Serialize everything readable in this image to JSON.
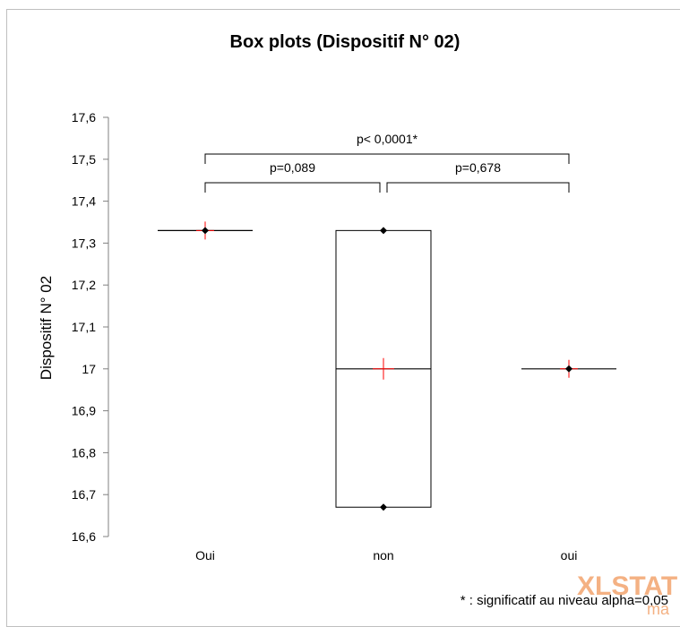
{
  "chart_data": {
    "type": "box",
    "title": "Box plots (Dispositif N° 02)",
    "ylabel": "Dispositif N° 02",
    "xlabel": "",
    "ylim": [
      16.6,
      17.6
    ],
    "yticks": [
      16.6,
      16.7,
      16.8,
      16.9,
      17,
      17.1,
      17.2,
      17.3,
      17.4,
      17.5,
      17.6
    ],
    "ytick_labels": [
      "16,6",
      "16,7",
      "16,8",
      "16,9",
      "17",
      "17,1",
      "17,2",
      "17,3",
      "17,4",
      "17,5",
      "17,6"
    ],
    "categories": [
      "Oui",
      "non",
      "oui"
    ],
    "boxes": [
      {
        "category": "Oui",
        "min": 17.33,
        "q1": 17.33,
        "median": 17.33,
        "q3": 17.33,
        "max": 17.33,
        "mean": 17.33,
        "points": [
          17.33
        ]
      },
      {
        "category": "non",
        "min": 16.67,
        "q1": 16.67,
        "median": 17.0,
        "q3": 17.33,
        "max": 17.33,
        "mean": 17.0,
        "points": [
          17.33,
          16.67
        ]
      },
      {
        "category": "oui",
        "min": 17.0,
        "q1": 17.0,
        "median": 17.0,
        "q3": 17.0,
        "max": 17.0,
        "mean": 17.0,
        "points": [
          17.0
        ]
      }
    ],
    "comparisons": [
      {
        "from": "Oui",
        "to": "non",
        "label": "p=0,089",
        "level": 1
      },
      {
        "from": "non",
        "to": "oui",
        "label": "p=0,678",
        "level": 1
      },
      {
        "from": "Oui",
        "to": "oui",
        "label": "p< 0,0001*",
        "level": 2
      }
    ],
    "footnote": "* : significatif au niveau alpha=0,05",
    "colors": {
      "mean_marker": "#ff0000",
      "point": "#000000",
      "box_stroke": "#000000",
      "watermark": "#f4b183"
    }
  },
  "watermark": {
    "text": "XLSTAT",
    "subtext": "ma"
  }
}
